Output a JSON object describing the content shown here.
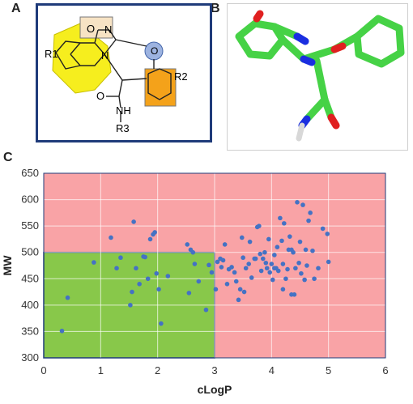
{
  "figure": {
    "panels": [
      {
        "label": "A"
      },
      {
        "label": "B"
      },
      {
        "label": "C"
      }
    ]
  },
  "panel_a": {
    "atoms": {
      "o_top": "O",
      "n_ring": "N",
      "n_lower": "N",
      "o_ether": "O",
      "r1": "R1",
      "r2": "R2",
      "o_amide": "O",
      "nh": "NH",
      "r3": "R3"
    }
  },
  "colors": {
    "yellow_region": "#f6ee1e",
    "orange_region": "#f4a21a",
    "tan_region": "#f7e3c4",
    "blue_circle": "#9db3e0",
    "box_border": "#1f3b7a",
    "carbon": "#46d246",
    "nitrogen": "#1a2ee0",
    "oxygen": "#e02020",
    "red_zone": "#f9a3a6",
    "green_zone": "#88c84a",
    "point": "#4472c4"
  },
  "chart_data": {
    "type": "scatter",
    "title": "",
    "xlabel": "cLogP",
    "ylabel": "MW",
    "xlim": [
      0,
      6
    ],
    "ylim": [
      300,
      650
    ],
    "xticks": [
      0,
      1,
      2,
      3,
      4,
      5,
      6
    ],
    "yticks": [
      300,
      350,
      400,
      450,
      500,
      550,
      600,
      650
    ],
    "grid": true,
    "regions": [
      {
        "name": "red",
        "x": [
          0,
          6
        ],
        "y": [
          300,
          650
        ]
      },
      {
        "name": "green",
        "x": [
          0,
          3
        ],
        "y": [
          300,
          500
        ]
      }
    ],
    "points": [
      [
        0.32,
        351
      ],
      [
        0.42,
        414
      ],
      [
        0.88,
        481
      ],
      [
        1.18,
        528
      ],
      [
        1.28,
        470
      ],
      [
        1.35,
        490
      ],
      [
        1.52,
        400
      ],
      [
        1.55,
        425
      ],
      [
        1.58,
        558
      ],
      [
        1.62,
        470
      ],
      [
        1.68,
        440
      ],
      [
        1.75,
        492
      ],
      [
        1.78,
        491
      ],
      [
        1.83,
        450
      ],
      [
        1.87,
        525
      ],
      [
        1.92,
        534
      ],
      [
        1.95,
        538
      ],
      [
        1.98,
        460
      ],
      [
        2.02,
        430
      ],
      [
        2.06,
        365
      ],
      [
        2.18,
        455
      ],
      [
        2.52,
        515
      ],
      [
        2.55,
        423
      ],
      [
        2.58,
        505
      ],
      [
        2.62,
        500
      ],
      [
        2.65,
        478
      ],
      [
        2.72,
        445
      ],
      [
        2.85,
        391
      ],
      [
        2.9,
        476
      ],
      [
        2.95,
        462
      ],
      [
        3.02,
        430
      ],
      [
        3.05,
        482
      ],
      [
        3.1,
        488
      ],
      [
        3.12,
        472
      ],
      [
        3.15,
        485
      ],
      [
        3.18,
        515
      ],
      [
        3.22,
        440
      ],
      [
        3.25,
        468
      ],
      [
        3.3,
        472
      ],
      [
        3.35,
        462
      ],
      [
        3.38,
        445
      ],
      [
        3.42,
        410
      ],
      [
        3.45,
        430
      ],
      [
        3.48,
        528
      ],
      [
        3.5,
        490
      ],
      [
        3.52,
        425
      ],
      [
        3.55,
        470
      ],
      [
        3.6,
        478
      ],
      [
        3.62,
        520
      ],
      [
        3.65,
        452
      ],
      [
        3.7,
        488
      ],
      [
        3.75,
        548
      ],
      [
        3.78,
        550
      ],
      [
        3.8,
        497
      ],
      [
        3.82,
        465
      ],
      [
        3.85,
        488
      ],
      [
        3.88,
        500
      ],
      [
        3.92,
        470
      ],
      [
        3.95,
        525
      ],
      [
        3.97,
        462
      ],
      [
        4.0,
        478
      ],
      [
        4.02,
        448
      ],
      [
        4.05,
        495
      ],
      [
        4.08,
        470
      ],
      [
        4.1,
        510
      ],
      [
        4.12,
        465
      ],
      [
        4.15,
        565
      ],
      [
        4.18,
        522
      ],
      [
        4.2,
        478
      ],
      [
        4.22,
        555
      ],
      [
        4.25,
        450
      ],
      [
        4.28,
        468
      ],
      [
        4.3,
        505
      ],
      [
        4.32,
        530
      ],
      [
        4.35,
        420
      ],
      [
        4.38,
        500
      ],
      [
        4.4,
        420
      ],
      [
        4.42,
        470
      ],
      [
        4.45,
        595
      ],
      [
        4.48,
        480
      ],
      [
        4.5,
        520
      ],
      [
        4.52,
        460
      ],
      [
        4.55,
        590
      ],
      [
        4.58,
        448
      ],
      [
        4.6,
        505
      ],
      [
        4.62,
        475
      ],
      [
        4.65,
        560
      ],
      [
        4.68,
        575
      ],
      [
        4.72,
        503
      ],
      [
        4.75,
        450
      ],
      [
        4.82,
        470
      ],
      [
        4.9,
        545
      ],
      [
        4.98,
        535
      ],
      [
        5.0,
        482
      ],
      [
        4.2,
        430
      ],
      [
        3.72,
        488
      ],
      [
        4.05,
        470
      ],
      [
        3.9,
        480
      ],
      [
        4.35,
        505
      ]
    ]
  }
}
